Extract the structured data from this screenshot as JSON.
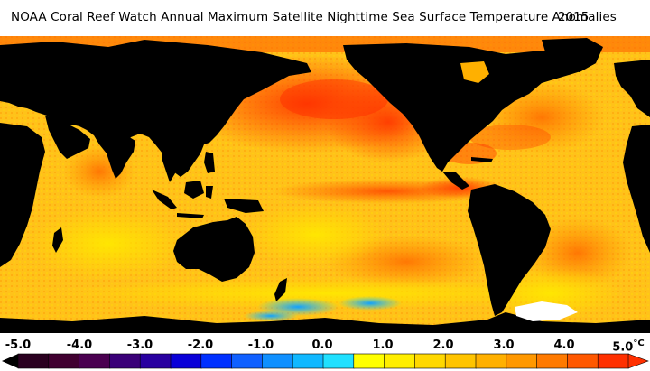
{
  "title": {
    "text": "NOAA Coral Reef Watch Annual Maximum Satellite Nighttime Sea Surface Temperature Anomalies",
    "year": "2015"
  },
  "colors": {
    "land": "#000000",
    "ice": "#ffffff",
    "ocean_base": "#ffc21a"
  },
  "legend": {
    "unit": "°C",
    "min": -5.0,
    "max": 5.0,
    "ticks": [
      "-5.0",
      "-4.0",
      "-3.0",
      "-2.0",
      "-1.0",
      "0.0",
      "1.0",
      "2.0",
      "3.0",
      "4.0",
      "5.0"
    ],
    "swatches": [
      "#2a0020",
      "#400030",
      "#4a0050",
      "#3a0078",
      "#2800a0",
      "#0a00d8",
      "#0030ff",
      "#1060ff",
      "#1090ff",
      "#10b8ff",
      "#20e0ff",
      "#ffff00",
      "#ffee00",
      "#ffd800",
      "#ffc400",
      "#ffb000",
      "#ff9800",
      "#ff7a00",
      "#ff5800",
      "#ff3000"
    ]
  }
}
